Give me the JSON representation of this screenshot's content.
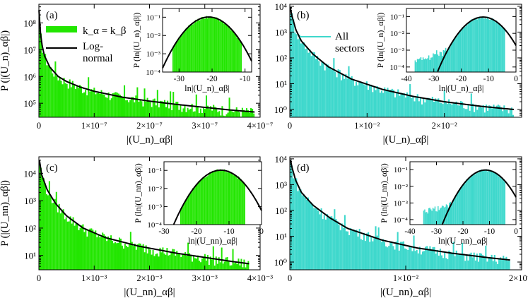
{
  "chart_data": [
    {
      "type": "bar",
      "panel_label": "(a)",
      "color": "#22e600",
      "y_log": true,
      "ylim": [
        30000,
        500000000
      ],
      "xlim": [
        0,
        4e-07
      ],
      "ylabel": "P (|(U_n)_αβ|)",
      "xlabel": "|(U_n)_αβ|",
      "x_ticks": [
        0,
        1e-07,
        2e-07,
        3e-07,
        4e-07
      ],
      "x_tick_labels": [
        "0",
        "1×10⁻⁷",
        "2×10⁻⁷",
        "3×10⁻⁷",
        "4×10⁻⁷"
      ],
      "y_ticks": [
        100000,
        1000000,
        10000000,
        100000000
      ],
      "y_tick_labels": [
        "10⁵",
        "10⁶",
        "10⁷",
        "10⁸"
      ],
      "legend": [
        {
          "label": "k_α = k_β",
          "kind": "patch"
        },
        {
          "label": "Log-normal",
          "kind": "line"
        }
      ],
      "curve": {
        "x": [
          2e-10,
          1e-09,
          3e-09,
          6e-09,
          1e-08,
          2e-08,
          3.5e-08,
          5e-08,
          7.5e-08,
          1e-07,
          1.5e-07,
          2e-07,
          2.5e-07,
          3e-07,
          3.5e-07,
          3.9e-07
        ],
        "y": [
          300000000,
          150000000,
          40000000,
          14000000,
          6000000,
          2200000,
          1000000,
          650000,
          400000,
          280000,
          170000,
          120000,
          90000,
          70000,
          55000,
          47000
        ]
      },
      "inset": {
        "xlim": [
          -35,
          -8
        ],
        "ylim": [
          0.0001,
          0.3
        ],
        "x_ticks": [
          -30,
          -20,
          -10
        ],
        "x_tick_labels": [
          "-30",
          "-20",
          "-10"
        ],
        "y_ticks": [
          0.0001,
          0.001,
          0.01,
          0.1
        ],
        "y_tick_labels": [
          "10⁻⁴",
          "10⁻³",
          "10⁻²",
          "10⁻¹"
        ],
        "xlabel": "ln|(U_n)_αβ|",
        "ylabel": "P (ln|(U_n)_αβ|)",
        "lognormal": {
          "mu": -21,
          "sigma": 3.9
        },
        "bars_range": [
          -32,
          -11
        ]
      }
    },
    {
      "type": "bar",
      "panel_label": "(b)",
      "color": "#3ed8cc",
      "y_log": true,
      "ylim": [
        0.5,
        12000
      ],
      "xlim": [
        0,
        0.03
      ],
      "ylabel": "",
      "xlabel": "|(U_n)_αβ|",
      "x_ticks": [
        0,
        0.01,
        0.02
      ],
      "x_tick_labels": [
        "0",
        "1×10⁻²",
        "2×10⁻²"
      ],
      "y_ticks": [
        1,
        10,
        100,
        1000,
        10000
      ],
      "y_tick_labels": [
        "10⁰",
        "10¹",
        "10²",
        "10³",
        "10⁴"
      ],
      "legend": [
        {
          "label": "All sectors",
          "kind": "line"
        }
      ],
      "curve": {
        "x": [
          5e-05,
          0.0003,
          0.0008,
          0.0015,
          0.003,
          0.005,
          0.008,
          0.012,
          0.016,
          0.02,
          0.025,
          0.029
        ],
        "y": [
          9000,
          4000,
          1200,
          450,
          140,
          45,
          15,
          6,
          3.2,
          2,
          1.3,
          1
        ]
      },
      "inset": {
        "xlim": [
          -40,
          0
        ],
        "ylim": [
          5e-05,
          0.3
        ],
        "x_ticks": [
          -40,
          -30,
          -20,
          -10,
          0
        ],
        "x_tick_labels": [
          "-40",
          "-30",
          "-20",
          "-10",
          "0"
        ],
        "y_ticks": [
          0.0001,
          0.001,
          0.01,
          0.1
        ],
        "y_tick_labels": [
          "10⁻⁴",
          "10⁻³",
          "10⁻²",
          "10⁻¹"
        ],
        "xlabel": "ln|(U_n)_αβ|",
        "ylabel": "P (ln|(U_n)_αβ|)",
        "lognormal": {
          "mu": -12,
          "sigma": 4.3
        },
        "bars_range": [
          -37,
          -4
        ]
      }
    },
    {
      "type": "bar",
      "panel_label": "(c)",
      "color": "#22e600",
      "y_log": true,
      "ylim": [
        3,
        40000
      ],
      "xlim": [
        0,
        0.004
      ],
      "ylabel": "P (|(U_nn)_αβ|)",
      "xlabel": "|(U_nn)_αβ|",
      "x_ticks": [
        0,
        0.001,
        0.002,
        0.003,
        0.004
      ],
      "x_tick_labels": [
        "0",
        "1×10⁻³",
        "2×10⁻³",
        "3×10⁻³",
        "4×10⁻³"
      ],
      "y_ticks": [
        10,
        100,
        1000,
        10000
      ],
      "y_tick_labels": [
        "10¹",
        "10²",
        "10³",
        "10⁴"
      ],
      "legend": [],
      "curve": {
        "x": [
          1e-05,
          5e-05,
          0.00015,
          0.0003,
          0.0005,
          0.0008,
          0.0012,
          0.0018,
          0.0025,
          0.003,
          0.0035,
          0.0038
        ],
        "y": [
          30000,
          9000,
          2500,
          800,
          280,
          100,
          45,
          22,
          12,
          8.5,
          6,
          5
        ]
      },
      "inset": {
        "xlim": [
          -30,
          0
        ],
        "ylim": [
          0.0001,
          0.3
        ],
        "x_ticks": [
          -30,
          -20,
          -10,
          0
        ],
        "x_tick_labels": [
          "-30",
          "-20",
          "-10",
          "0"
        ],
        "y_ticks": [
          0.0001,
          0.001,
          0.01,
          0.1
        ],
        "y_tick_labels": [
          "10⁻⁴",
          "10⁻³",
          "10⁻²",
          "10⁻¹"
        ],
        "xlabel": "ln|(U_nn)_αβ|",
        "ylabel": "P (ln|(U_nn)_αβ|)",
        "lognormal": {
          "mu": -12.5,
          "sigma": 3.9
        },
        "bars_range": [
          -25,
          -5
        ]
      }
    },
    {
      "type": "bar",
      "panel_label": "(d)",
      "color": "#3ed8cc",
      "y_log": true,
      "ylim": [
        0.5,
        12000
      ],
      "xlim": [
        0,
        0.02
      ],
      "ylabel": "",
      "xlabel": "|(U_nn)_αβ|",
      "x_ticks": [
        0,
        0.01,
        0.02
      ],
      "x_tick_labels": [
        "0",
        "1×10⁻²",
        "2×10⁻²"
      ],
      "y_ticks": [
        1,
        10,
        100,
        1000,
        10000
      ],
      "y_tick_labels": [
        "10⁰",
        "10¹",
        "10²",
        "10³",
        "10⁴"
      ],
      "legend": [],
      "curve": {
        "x": [
          5e-05,
          0.0002,
          0.0005,
          0.001,
          0.002,
          0.0035,
          0.005,
          0.008,
          0.011,
          0.014,
          0.017,
          0.019
        ],
        "y": [
          9000,
          4500,
          1500,
          500,
          160,
          50,
          20,
          7,
          3.5,
          2.2,
          1.5,
          1.2
        ]
      },
      "inset": {
        "xlim": [
          -40,
          0
        ],
        "ylim": [
          5e-05,
          0.3
        ],
        "x_ticks": [
          -40,
          -30,
          -20,
          -10,
          0
        ],
        "x_tick_labels": [
          "-40",
          "-30",
          "-20",
          "-10",
          "0"
        ],
        "y_ticks": [
          0.0001,
          0.001,
          0.01,
          0.1
        ],
        "y_tick_labels": [
          "10⁻⁴",
          "10⁻³",
          "10⁻²",
          "10⁻¹"
        ],
        "xlabel": "ln|(U_nn)_αβ|",
        "ylabel": "P (ln|(U_nn)_αβ|)",
        "lognormal": {
          "mu": -11.5,
          "sigma": 4.2
        },
        "bars_range": [
          -35,
          -4
        ]
      }
    }
  ]
}
